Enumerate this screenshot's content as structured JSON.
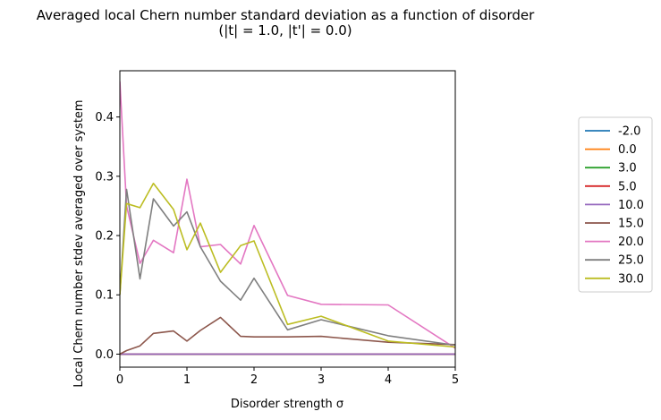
{
  "chart_data": {
    "type": "line",
    "title": "Averaged local Chern number standard deviation as a function of disorder",
    "subtitle": "(|t| = 1.0, |t'| = 0.0)",
    "xlabel": "Disorder strength σ",
    "ylabel": "Local Chern number stdev averaged over system",
    "xlim": [
      0,
      5
    ],
    "ylim": [
      -0.022,
      0.478
    ],
    "xticks": [
      "0",
      "1",
      "2",
      "3",
      "4",
      "5"
    ],
    "yticks": [
      "0.0",
      "0.1",
      "0.2",
      "0.3",
      "0.4"
    ],
    "grid": false,
    "legend_position": "right-outside",
    "series": [
      {
        "name": "-2.0",
        "color": "#1f77b4",
        "x": [
          0,
          0.1,
          0.3,
          0.5,
          0.8,
          1.0,
          1.2,
          1.5,
          1.8,
          2.0,
          2.5,
          3.0,
          4.0,
          5.0
        ],
        "y": [
          0,
          0,
          0,
          0,
          0,
          0,
          0,
          0,
          0,
          0,
          0,
          0,
          0,
          0
        ]
      },
      {
        "name": "0.0",
        "color": "#ff7f0e",
        "x": [
          0,
          0.1,
          0.3,
          0.5,
          0.8,
          1.0,
          1.2,
          1.5,
          1.8,
          2.0,
          2.5,
          3.0,
          4.0,
          5.0
        ],
        "y": [
          0,
          0,
          0,
          0,
          0,
          0,
          0,
          0,
          0,
          0,
          0,
          0,
          0,
          0
        ]
      },
      {
        "name": "3.0",
        "color": "#2ca02c",
        "x": [
          0,
          0.1,
          0.3,
          0.5,
          0.8,
          1.0,
          1.2,
          1.5,
          1.8,
          2.0,
          2.5,
          3.0,
          4.0,
          5.0
        ],
        "y": [
          0,
          0,
          0,
          0,
          0,
          0,
          0,
          0,
          0,
          0,
          0,
          0,
          0,
          0
        ]
      },
      {
        "name": "5.0",
        "color": "#d62728",
        "x": [
          0,
          0.1,
          0.3,
          0.5,
          0.8,
          1.0,
          1.2,
          1.5,
          1.8,
          2.0,
          2.5,
          3.0,
          4.0,
          5.0
        ],
        "y": [
          0,
          0,
          0,
          0,
          0,
          0,
          0,
          0,
          0,
          0,
          0,
          0,
          0,
          0
        ]
      },
      {
        "name": "10.0",
        "color": "#9467bd",
        "x": [
          0,
          0.1,
          0.3,
          0.5,
          0.8,
          1.0,
          1.2,
          1.5,
          1.8,
          2.0,
          2.5,
          3.0,
          4.0,
          5.0
        ],
        "y": [
          0,
          0,
          0,
          0,
          0,
          0,
          0,
          0,
          0,
          0,
          0,
          0,
          0,
          0
        ]
      },
      {
        "name": "15.0",
        "color": "#8c564b",
        "x": [
          0,
          0.1,
          0.3,
          0.5,
          0.8,
          1.0,
          1.2,
          1.5,
          1.8,
          2.0,
          2.5,
          3.0,
          4.0,
          5.0
        ],
        "y": [
          0,
          0.006,
          0.014,
          0.035,
          0.039,
          0.022,
          0.04,
          0.062,
          0.03,
          0.029,
          0.029,
          0.03,
          0.02,
          0.016
        ]
      },
      {
        "name": "20.0",
        "color": "#e377c2",
        "x": [
          0,
          0.1,
          0.3,
          0.5,
          0.8,
          1.0,
          1.2,
          1.5,
          1.8,
          2.0,
          2.5,
          3.0,
          4.0,
          5.0
        ],
        "y": [
          0.46,
          0.25,
          0.153,
          0.192,
          0.171,
          0.295,
          0.181,
          0.185,
          0.152,
          0.217,
          0.099,
          0.084,
          0.083,
          0.01
        ]
      },
      {
        "name": "25.0",
        "color": "#7f7f7f",
        "x": [
          0,
          0.1,
          0.3,
          0.5,
          0.8,
          1.0,
          1.2,
          1.5,
          1.8,
          2.0,
          2.5,
          3.0,
          4.0,
          5.0
        ],
        "y": [
          0.101,
          0.278,
          0.127,
          0.262,
          0.216,
          0.24,
          0.181,
          0.123,
          0.091,
          0.128,
          0.041,
          0.058,
          0.031,
          0.015
        ]
      },
      {
        "name": "30.0",
        "color": "#bcbd22",
        "x": [
          0,
          0.1,
          0.3,
          0.5,
          0.8,
          1.0,
          1.2,
          1.5,
          1.8,
          2.0,
          2.5,
          3.0,
          4.0,
          5.0
        ],
        "y": [
          0.1,
          0.254,
          0.247,
          0.288,
          0.244,
          0.176,
          0.221,
          0.138,
          0.183,
          0.191,
          0.05,
          0.064,
          0.022,
          0.012
        ]
      }
    ]
  }
}
